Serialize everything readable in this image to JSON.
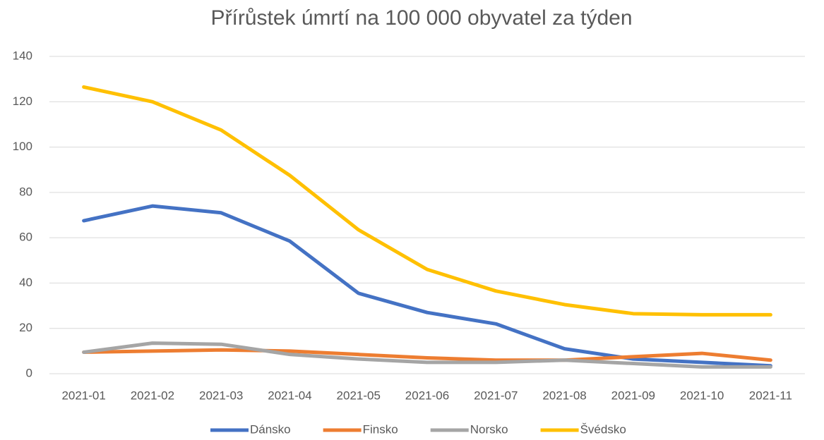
{
  "chart_data": {
    "type": "line",
    "title": "Přírůstek úmrtí na 100 000 obyvatel za týden",
    "categories": [
      "2021-01",
      "2021-02",
      "2021-03",
      "2021-04",
      "2021-05",
      "2021-06",
      "2021-07",
      "2021-08",
      "2021-09",
      "2021-10",
      "2021-11"
    ],
    "series": [
      {
        "name": "Dánsko",
        "color": "#4472c4",
        "values": [
          67.5,
          74,
          71,
          58.5,
          35.5,
          27,
          22,
          11,
          6.5,
          5,
          3.5
        ]
      },
      {
        "name": "Finsko",
        "color": "#ed7d31",
        "values": [
          9.5,
          10,
          10.5,
          10,
          8.5,
          7,
          6,
          6,
          7.5,
          9,
          6
        ]
      },
      {
        "name": "Norsko",
        "color": "#a5a5a5",
        "values": [
          9.5,
          13.5,
          13,
          8.5,
          6.5,
          5,
          5,
          6,
          4.5,
          3,
          3
        ]
      },
      {
        "name": "Švédsko",
        "color": "#ffc000",
        "values": [
          126.5,
          120,
          107.5,
          87.5,
          63.5,
          46,
          36.5,
          30.5,
          26.5,
          26,
          26
        ]
      }
    ],
    "ylim": [
      0,
      140
    ],
    "yticks": [
      0,
      20,
      40,
      60,
      80,
      100,
      120,
      140
    ],
    "grid": true,
    "legend": "bottom"
  }
}
